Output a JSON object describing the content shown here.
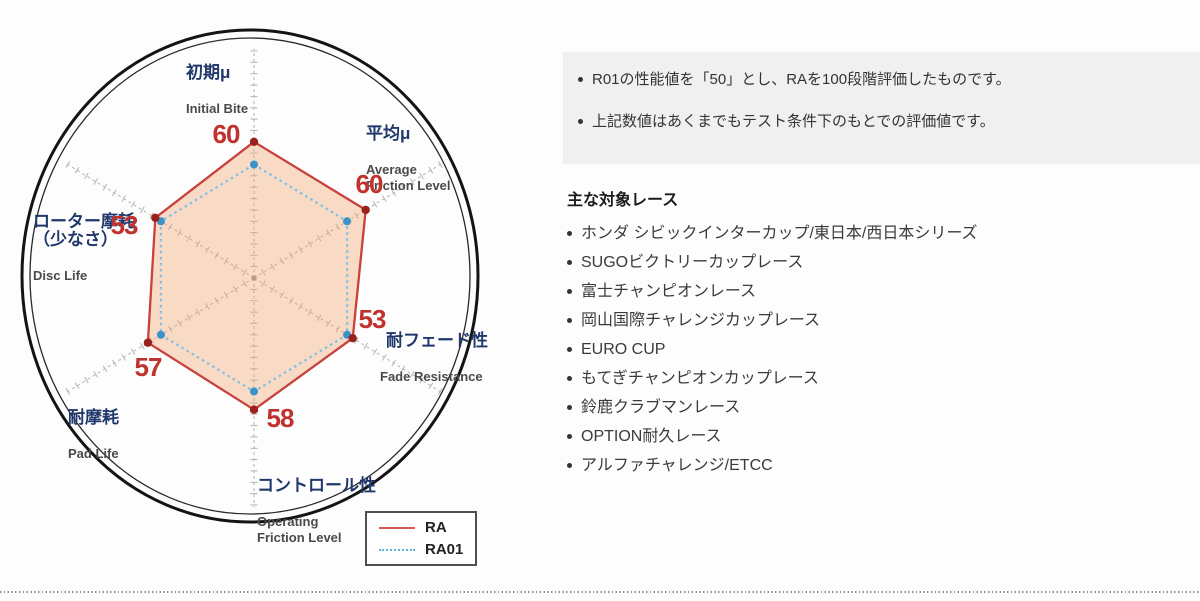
{
  "chart_data": {
    "type": "radar",
    "title": "",
    "axes": [
      {
        "jp": "初期μ",
        "en": "Initial Bite"
      },
      {
        "jp": "平均μ",
        "en": "Average\nFriction Level"
      },
      {
        "jp": "耐フェード性",
        "en": "Fade Resistance"
      },
      {
        "jp": "コントロール性",
        "en": "Operating\nFriction Level"
      },
      {
        "jp": "耐摩耗",
        "en": "Pad Life"
      },
      {
        "jp": "ローター摩耗\n（少なさ）",
        "en": "Disc Life"
      }
    ],
    "series": [
      {
        "name": "RA",
        "style": "solid",
        "line_color": "#c7423c",
        "dot_color": "#9b221c",
        "fill_color": "#f0a06a",
        "values": [
          60,
          60,
          53,
          58,
          57,
          53
        ]
      },
      {
        "name": "RA01",
        "style": "dotted",
        "line_color": "#7ec0e6",
        "dot_color": "#3b92c9",
        "fill_color": "none",
        "values": [
          50,
          50,
          50,
          50,
          50,
          50
        ]
      }
    ],
    "scale": {
      "min": 0,
      "max": 100,
      "tick_step": 5
    },
    "grid": "six dashed spoke axes with tick marks inside double outer ring",
    "legend_position": "bottom-right"
  },
  "legend": {
    "ra_label": "RA",
    "ra01_label": "RA01"
  },
  "notes": {
    "items": [
      "R01の性能値を「50」とし、RAを100段階評価したものです。",
      "上記数値はあくまでもテスト条件下のもとでの評価値です。"
    ]
  },
  "races": {
    "heading": "主な対象レース",
    "items": [
      "ホンダ シビックインターカップ/東日本/西日本シリーズ",
      "SUGOビクトリーカップレース",
      "富士チャンピオンレース",
      "岡山国際チャレンジカップレース",
      "EURO CUP",
      "もてぎチャンピオンカップレース",
      "鈴鹿クラブマンレース",
      "OPTION耐久レース",
      "アルファチャレンジ/ETCC"
    ]
  },
  "colors": {
    "ra_line": "#c7423c",
    "ra_dot": "#9b221c",
    "ra_fill": "#f0a06a",
    "ra01_line": "#7ec0e6",
    "ra01_dot": "#3b92c9",
    "value_red": "#c0322e",
    "label_navy": "#20386b",
    "axis_gray": "#b3b3b3",
    "notes_bg": "#f0f0f0"
  }
}
